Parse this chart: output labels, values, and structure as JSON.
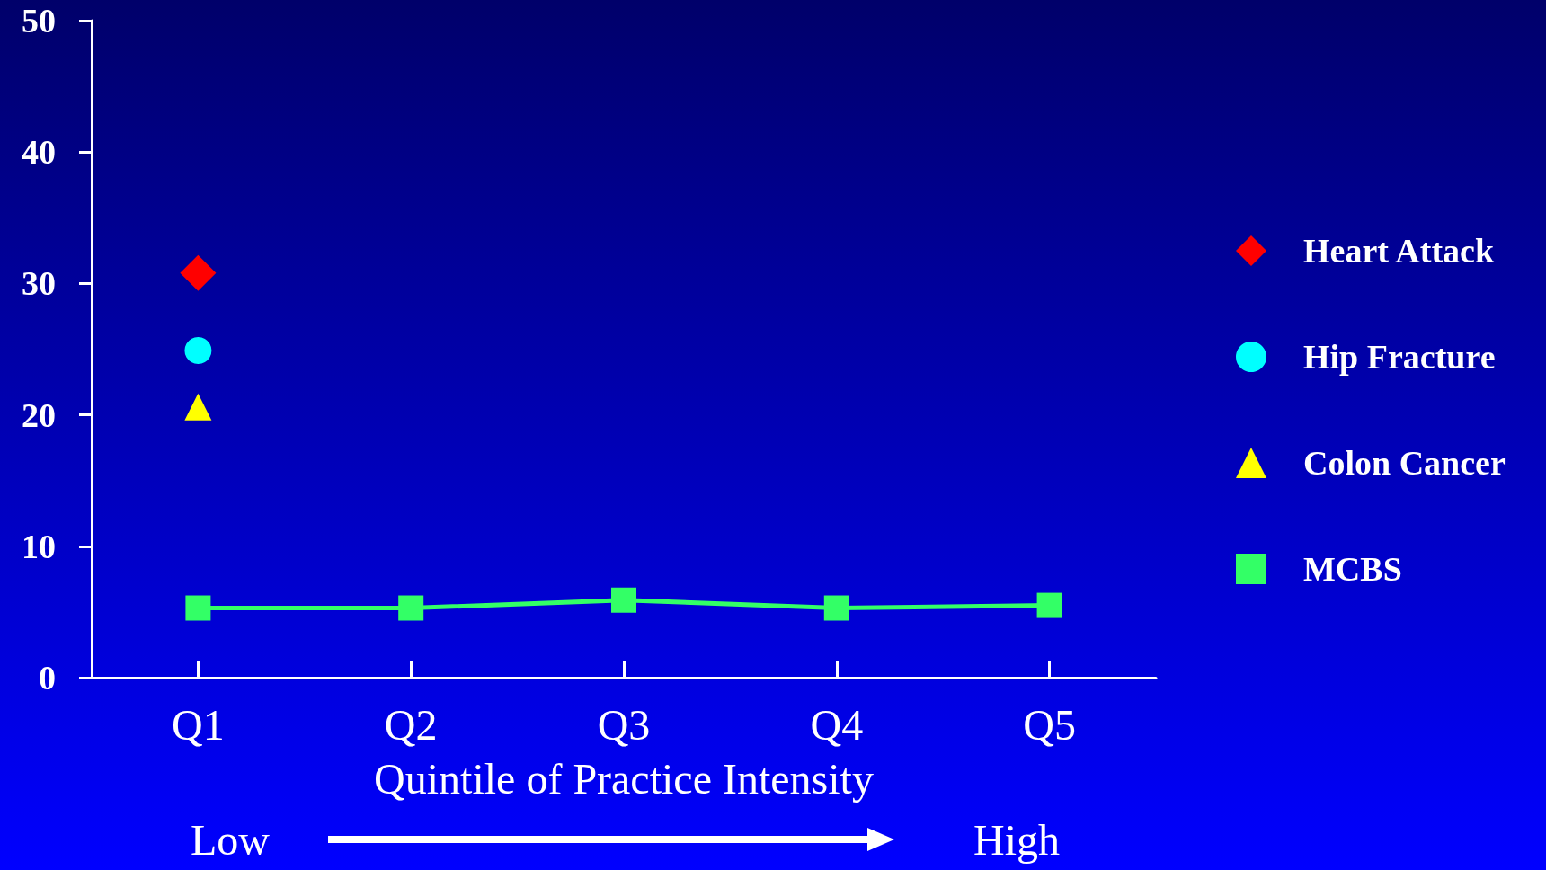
{
  "chart_data": {
    "type": "scatter",
    "xlabel": "Quintile of Practice Intensity",
    "categories": [
      "Q1",
      "Q2",
      "Q3",
      "Q4",
      "Q5"
    ],
    "series": [
      {
        "name": "Heart Attack",
        "color": "#ff0000",
        "marker": "diamond",
        "values": [
          30.8,
          null,
          null,
          null,
          null
        ]
      },
      {
        "name": "Hip Fracture",
        "color": "#00ffff",
        "marker": "circle",
        "values": [
          24.9,
          null,
          null,
          null,
          null
        ]
      },
      {
        "name": "Colon Cancer",
        "color": "#ffff00",
        "marker": "triangle",
        "values": [
          20.6,
          null,
          null,
          null,
          null
        ]
      },
      {
        "name": "MCBS",
        "type": "line",
        "color": "#33ff66",
        "marker": "square",
        "values": [
          5.3,
          5.3,
          5.9,
          5.3,
          5.5
        ]
      }
    ],
    "ylim": [
      0,
      50
    ],
    "yticks": [
      0,
      10,
      20,
      30,
      40,
      50
    ],
    "grid": false,
    "legend": "right",
    "annotations": [
      "Low",
      "High"
    ]
  }
}
